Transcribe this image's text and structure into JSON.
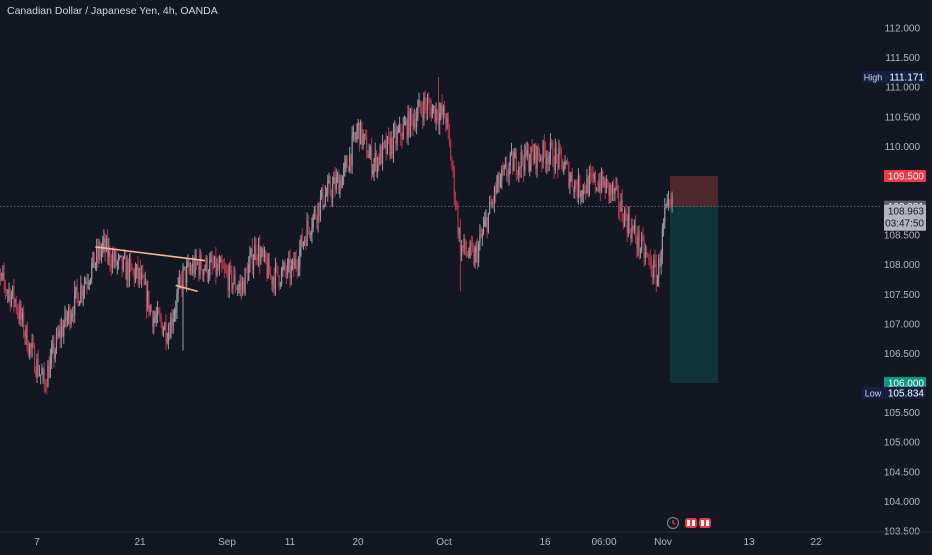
{
  "header": {
    "symbol_title": "Canadian Dollar / Japanese Yen, 4h, OANDA"
  },
  "colors": {
    "background": "#131722",
    "up_candle": "#9598a1",
    "down_candle": "#b2354a",
    "axis_text": "#b2b5be",
    "trendline": "#f7b69b",
    "stop_zone": "#5a2a31",
    "target_zone": "#12393a",
    "sell_badge": "#f23645",
    "target_badge": "#089981",
    "current_badge": "#b2b5be",
    "hl_badge": "#132042"
  },
  "markers": {
    "high": {
      "label": "High",
      "value": "111.171"
    },
    "low": {
      "label": "Low",
      "value": "105.834"
    },
    "entry": {
      "value": "108.981"
    },
    "last_price": {
      "value": "108.963",
      "countdown": "03:47:50"
    },
    "stop": {
      "value": "109.500"
    },
    "target": {
      "value": "106.000"
    }
  },
  "bottom_icons": [
    "alert-clock-icon",
    "replay-icon"
  ],
  "chart_data": {
    "type": "candlestick",
    "title": "Canadian Dollar / Japanese Yen, 4h, OANDA",
    "timeframe": "4h",
    "ylim": [
      103.45,
      112.35
    ],
    "y_ticks": [
      "112.000",
      "111.500",
      "111.000",
      "110.500",
      "110.000",
      "109.500",
      "109.000",
      "108.500",
      "108.000",
      "107.500",
      "107.000",
      "106.500",
      "106.000",
      "105.500",
      "105.000",
      "104.500",
      "104.000",
      "103.500"
    ],
    "x_ticks": [
      "7",
      "21",
      "Sep",
      "11",
      "20",
      "Oct",
      "16",
      "06:00",
      "Nov",
      "13",
      "22"
    ],
    "close_path": [
      [
        "Aug 1",
        107.9
      ],
      [
        "Aug 4",
        107.4
      ],
      [
        "Aug 6",
        106.6
      ],
      [
        "Aug 8",
        106.0
      ],
      [
        "Aug 10",
        106.8
      ],
      [
        "Aug 13",
        107.6
      ],
      [
        "Aug 16",
        108.3
      ],
      [
        "Aug 18",
        108.0
      ],
      [
        "Aug 21",
        107.8
      ],
      [
        "Aug 23",
        107.1
      ],
      [
        "Aug 25",
        106.9
      ],
      [
        "Aug 27",
        107.8
      ],
      [
        "Aug 29",
        108.0
      ],
      [
        "Sep 1",
        107.9
      ],
      [
        "Sep 4",
        107.6
      ],
      [
        "Sep 6",
        108.3
      ],
      [
        "Sep 8",
        107.8
      ],
      [
        "Sep 11",
        107.9
      ],
      [
        "Sep 13",
        108.6
      ],
      [
        "Sep 15",
        109.1
      ],
      [
        "Sep 18",
        109.5
      ],
      [
        "Sep 20",
        110.3
      ],
      [
        "Sep 22",
        109.7
      ],
      [
        "Sep 25",
        110.1
      ],
      [
        "Sep 27",
        110.4
      ],
      [
        "Sep 29",
        110.7
      ],
      [
        "Oct 2",
        110.5
      ],
      [
        "Oct 3",
        109.5
      ],
      [
        "Oct 4",
        108.3
      ],
      [
        "Oct 6",
        108.1
      ],
      [
        "Oct 9",
        109.3
      ],
      [
        "Oct 11",
        109.7
      ],
      [
        "Oct 13",
        109.8
      ],
      [
        "Oct 16",
        109.9
      ],
      [
        "Oct 18",
        109.7
      ],
      [
        "Oct 20",
        109.3
      ],
      [
        "Oct 23",
        109.4
      ],
      [
        "Oct 25",
        109.2
      ],
      [
        "Oct 27",
        108.7
      ],
      [
        "Oct 30",
        108.0
      ],
      [
        "Oct 31",
        107.8
      ],
      [
        "Nov 1",
        108.8
      ],
      [
        "Nov 2",
        108.96
      ]
    ],
    "high": 111.171,
    "low": 105.834,
    "position": {
      "type": "short",
      "entry": 108.981,
      "stop": 109.5,
      "target": 106.0
    },
    "trendlines": [
      {
        "from": [
          "Aug 15",
          108.3
        ],
        "to": [
          "Aug 30",
          108.07
        ]
      },
      {
        "from": [
          "Aug 26",
          107.65
        ],
        "to": [
          "Aug 29",
          107.55
        ]
      }
    ],
    "grid": false
  }
}
